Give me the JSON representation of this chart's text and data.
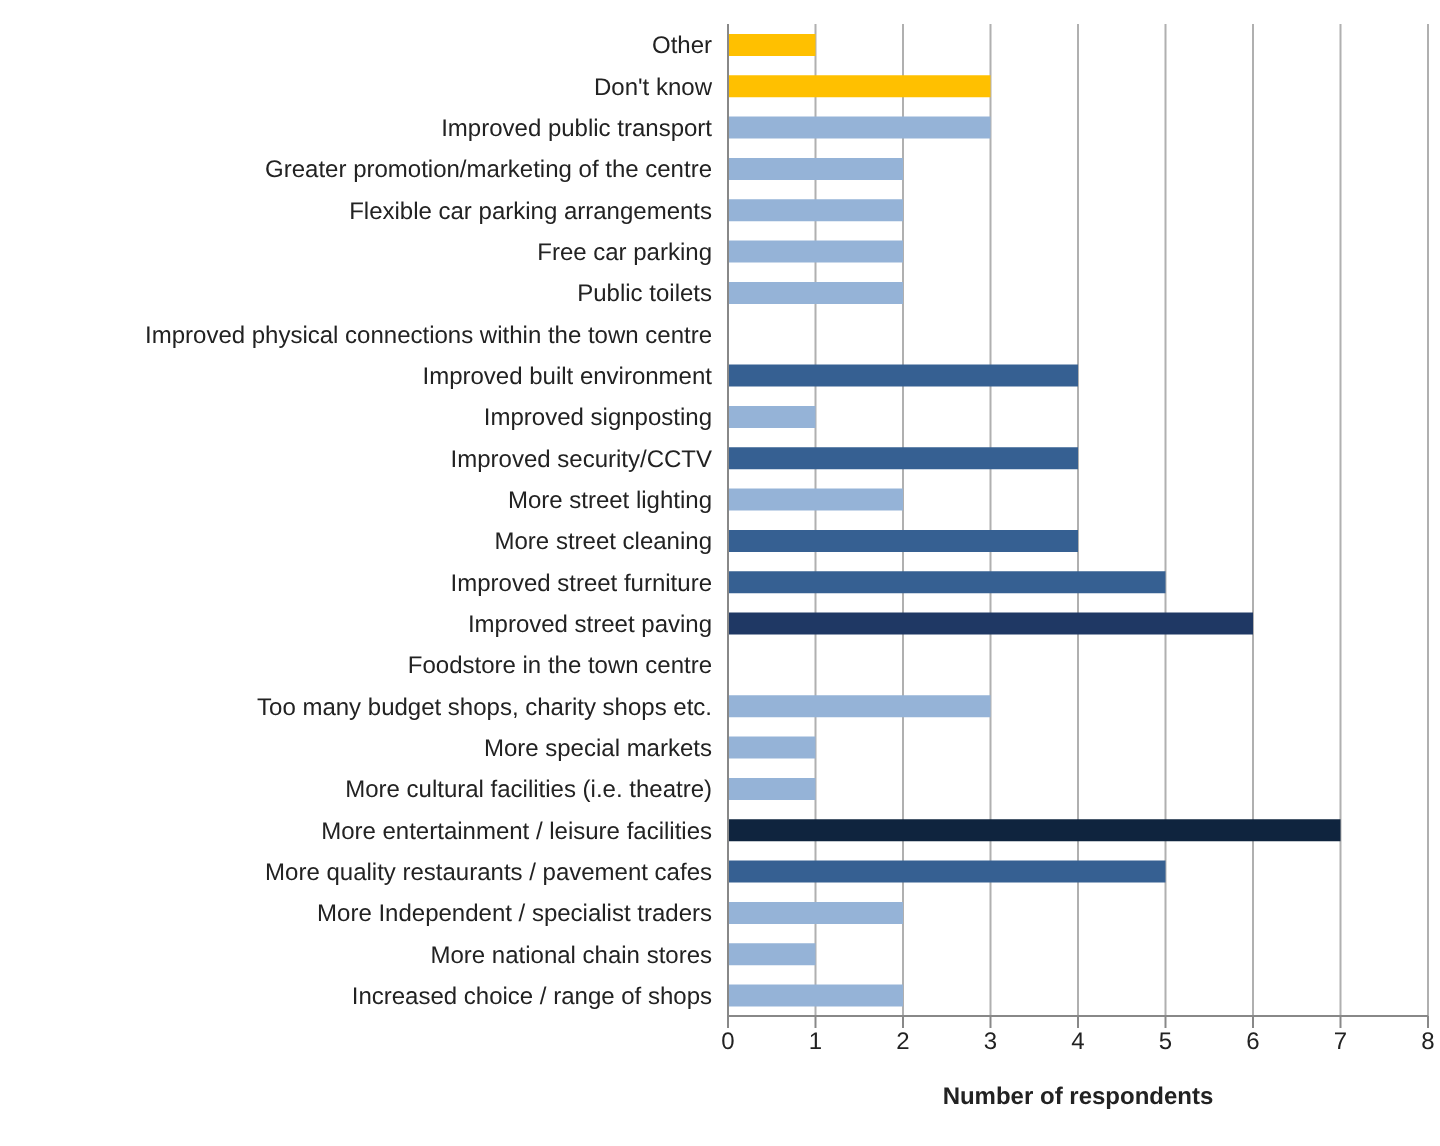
{
  "chart_data": {
    "type": "bar",
    "orientation": "horizontal",
    "xlabel": "Number of respondents",
    "categories": [
      "Other",
      "Don't know",
      "Improved public transport",
      "Greater promotion/marketing of the centre",
      "Flexible car parking arrangements",
      "Free car parking",
      "Public toilets",
      "Improved physical connections within the town centre",
      "Improved built environment",
      "Improved signposting",
      "Improved security/CCTV",
      "More street lighting",
      "More street cleaning",
      "Improved street furniture",
      "Improved street paving",
      "Foodstore in the town centre",
      "Too many budget shops, charity shops etc.",
      "More special markets",
      "More cultural facilities (i.e. theatre)",
      "More entertainment / leisure facilities",
      "More quality restaurants / pavement cafes",
      "More Independent / specialist traders",
      "More national chain stores",
      "Increased choice / range of shops"
    ],
    "values": [
      1,
      3,
      3,
      2,
      2,
      2,
      2,
      0,
      4,
      1,
      4,
      2,
      4,
      5,
      6,
      0,
      3,
      1,
      1,
      7,
      5,
      2,
      1,
      2
    ],
    "colors": [
      "#ffc000",
      "#ffc000",
      "#95b3d7",
      "#95b3d7",
      "#95b3d7",
      "#95b3d7",
      "#95b3d7",
      "#95b3d7",
      "#366092",
      "#95b3d7",
      "#366092",
      "#95b3d7",
      "#366092",
      "#366092",
      "#1f3864",
      "#95b3d7",
      "#95b3d7",
      "#95b3d7",
      "#95b3d7",
      "#0f243e",
      "#366092",
      "#95b3d7",
      "#95b3d7",
      "#95b3d7"
    ],
    "xlim": [
      0,
      8
    ],
    "xticks": [
      0,
      1,
      2,
      3,
      4,
      5,
      6,
      7,
      8
    ],
    "grid": "x"
  }
}
